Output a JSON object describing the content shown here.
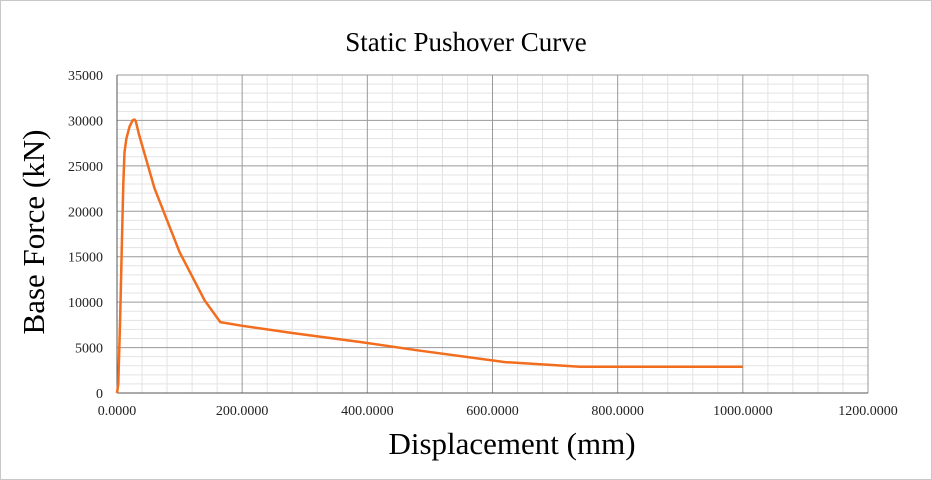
{
  "chart_data": {
    "type": "line",
    "title": "Static Pushover Curve",
    "xlabel": "Displacement (mm)",
    "ylabel": "Base Force (kN)",
    "xlim": [
      0,
      1200
    ],
    "ylim": [
      0,
      35000
    ],
    "x_ticks": [
      "0.0000",
      "200.0000",
      "400.0000",
      "600.0000",
      "800.0000",
      "1000.0000",
      "1200.0000"
    ],
    "y_ticks": [
      "0",
      "5000",
      "10000",
      "15000",
      "20000",
      "25000",
      "30000",
      "35000"
    ],
    "x_tick_values": [
      0,
      200,
      400,
      600,
      800,
      1000,
      1200
    ],
    "y_tick_values": [
      0,
      5000,
      10000,
      15000,
      20000,
      25000,
      30000,
      35000
    ],
    "grid": true,
    "series": [
      {
        "color": "#f26d1e",
        "x": [
          0,
          2,
          5,
          8,
          10,
          12,
          15,
          20,
          25,
          28,
          30,
          35,
          60,
          100,
          140,
          165,
          200,
          280,
          390,
          480,
          620,
          740,
          800,
          1000
        ],
        "y": [
          0,
          1000,
          8000,
          17000,
          23000,
          26500,
          28000,
          29300,
          30000,
          30100,
          29900,
          28500,
          22500,
          15500,
          10200,
          7800,
          7400,
          6600,
          5600,
          4700,
          3400,
          2900,
          2900,
          2900
        ]
      }
    ]
  }
}
